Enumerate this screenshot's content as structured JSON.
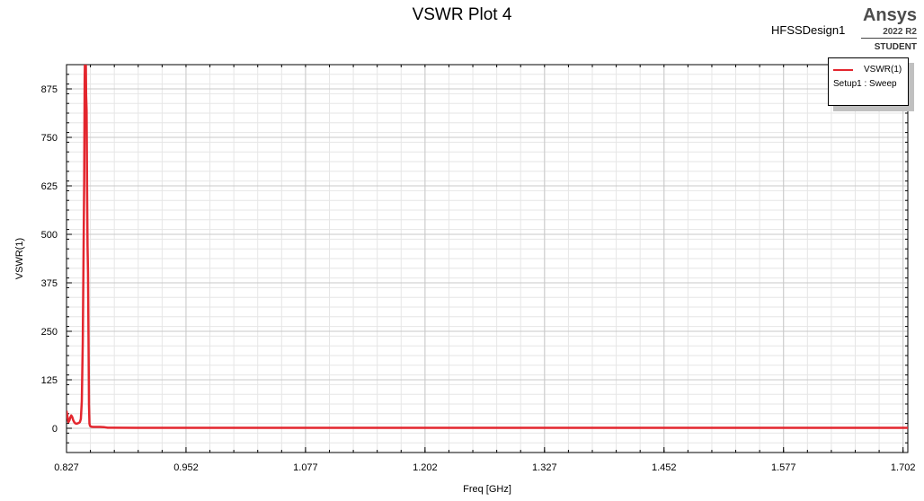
{
  "header": {
    "design_name": "HFSSDesign1",
    "brand": "Ansys",
    "version": "2022 R2",
    "edition": "STUDENT"
  },
  "legend": {
    "series_label": "VSWR(1)",
    "setup_label": "Setup1 : Sweep"
  },
  "chart_data": {
    "type": "line",
    "title": "VSWR Plot 4",
    "xlabel": "Freq [GHz]",
    "ylabel": "VSWR(1)",
    "xlim": [
      0.827,
      1.707
    ],
    "ylim": [
      -62.5,
      937.5
    ],
    "x_ticks": [
      0.827,
      0.952,
      1.077,
      1.202,
      1.327,
      1.452,
      1.577,
      1.702
    ],
    "x_tick_labels": [
      "0.827",
      "0.952",
      "1.077",
      "1.202",
      "1.327",
      "1.452",
      "1.577",
      "1.702"
    ],
    "y_ticks": [
      0,
      125,
      250,
      375,
      500,
      625,
      750,
      875
    ],
    "y_tick_labels": [
      "0",
      "125",
      "250",
      "375",
      "500",
      "625",
      "750",
      "875"
    ],
    "grid": true,
    "legend_position": "top-right",
    "series": [
      {
        "name": "VSWR(1)",
        "color": "#e3262e",
        "x": [
          0.827,
          0.828,
          0.829,
          0.83,
          0.831,
          0.832,
          0.833,
          0.834,
          0.835,
          0.836,
          0.837,
          0.838,
          0.839,
          0.84,
          0.841,
          0.842,
          0.843,
          0.844,
          0.845,
          0.8455,
          0.846,
          0.8465,
          0.847,
          0.8475,
          0.848,
          0.8485,
          0.849,
          0.8495,
          0.85,
          0.8505,
          0.851,
          0.8515,
          0.852,
          0.853,
          0.855,
          0.858,
          0.862,
          0.866,
          0.87,
          0.9,
          1.0,
          1.2,
          1.4,
          1.6,
          1.707
        ],
        "y": [
          45,
          30,
          16,
          20,
          28,
          33,
          29,
          21,
          16,
          13,
          12,
          12,
          13,
          14,
          16,
          24,
          70,
          220,
          500,
          640,
          900,
          990,
          1000,
          860,
          820,
          620,
          470,
          400,
          240,
          60,
          12,
          7,
          5,
          4,
          3.5,
          3.5,
          3.5,
          3,
          1.5,
          1.3,
          1.2,
          1.2,
          1.2,
          1.2,
          1.2
        ]
      }
    ]
  }
}
